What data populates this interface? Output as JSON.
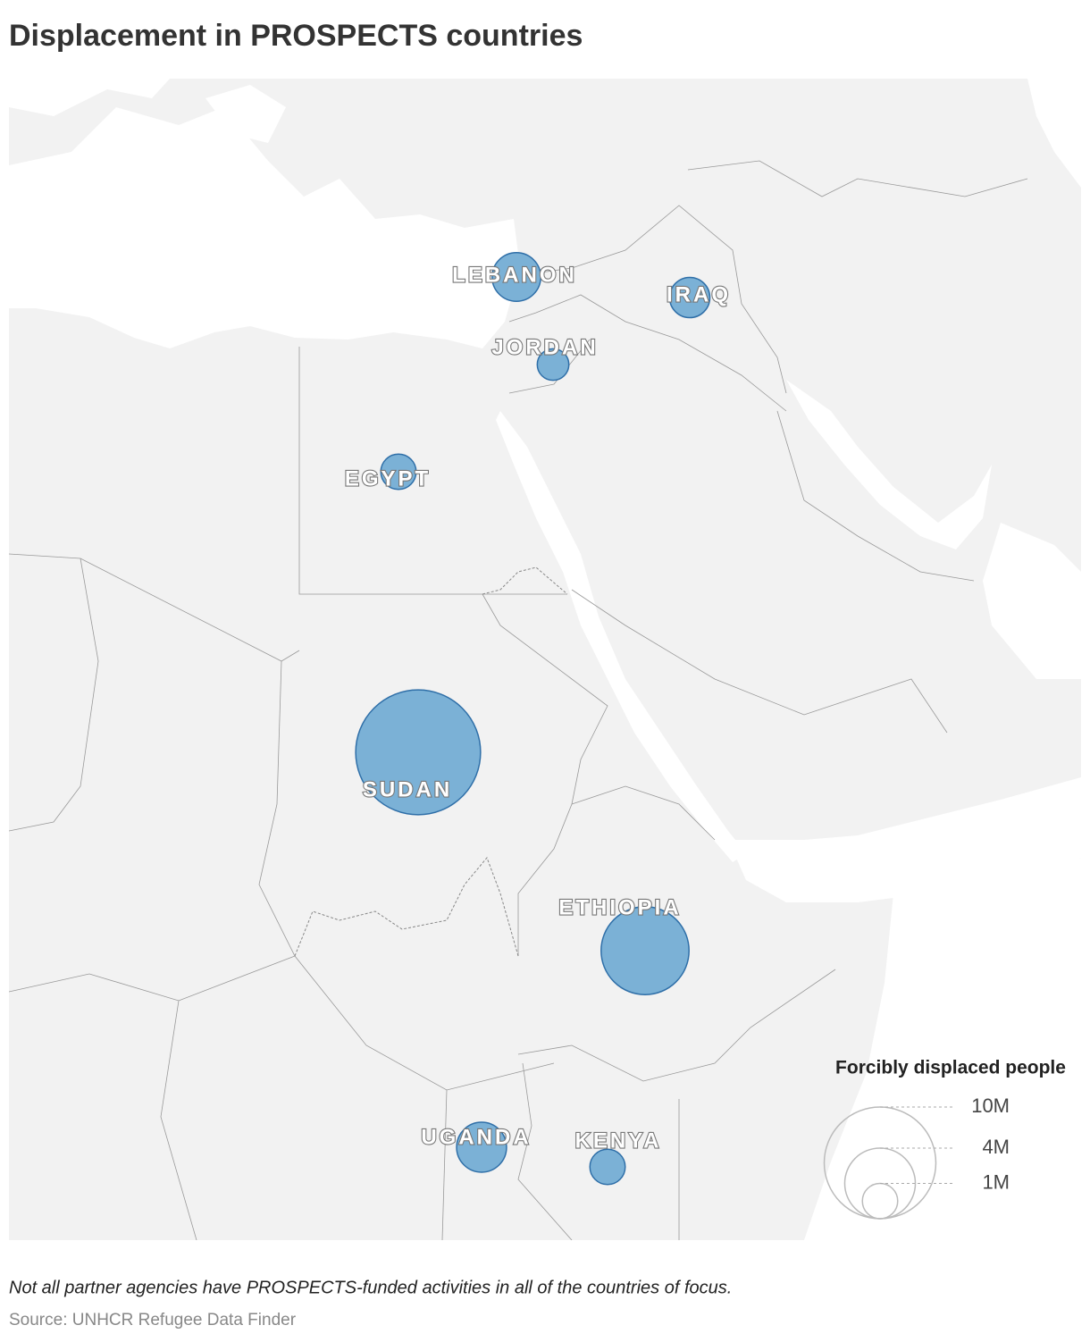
{
  "chart_data": {
    "type": "bubble-map",
    "title": "Displacement in PROSPECTS countries",
    "categories": [
      "LEBANON",
      "IRAQ",
      "JORDAN",
      "EGYPT",
      "SUDAN",
      "ETHIOPIA",
      "UGANDA",
      "KENYA"
    ],
    "values": [
      1.9,
      1.3,
      0.8,
      1.0,
      12.5,
      6.2,
      2.0,
      1.0
    ],
    "color": "#7bb1d6",
    "legend_title": "Forcibly displaced people",
    "legend_sizes": [
      {
        "value": 10,
        "label": "10M"
      },
      {
        "value": 4,
        "label": "4M"
      },
      {
        "value": 1,
        "label": "1M"
      }
    ],
    "note": "Not all partner agencies have PROSPECTS-funded activities in all of the countries of focus.",
    "source": "Source: UNHCR Refugee Data Finder"
  }
}
